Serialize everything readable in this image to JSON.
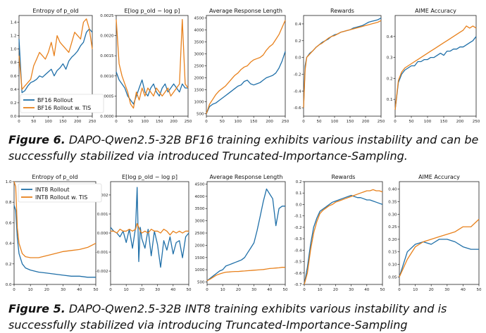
{
  "colors": {
    "blue": "#1f6fa8",
    "orange": "#e8811c"
  },
  "figures": [
    {
      "caption": {
        "label": "Figure 6.",
        "text": " DAPO-Qwen2.5-32B BF16 training exhibits various instability and can be successfully stabilized via introduced Truncated-Importance-Sampling."
      },
      "legend": {
        "placement": "lower-left of first panel",
        "entries": [
          "BF16 Rollout",
          "BF16 Rollout w. TIS"
        ]
      }
    },
    {
      "caption": {
        "label": "Figure 5.",
        "text": " DAPO-Qwen2.5-32B INT8 training exhibits various instability and is successfully stabilized via introducing Truncated-Importance-Sampling"
      },
      "legend": {
        "placement": "upper-right of first panel",
        "entries": [
          "INT8 Rollout",
          "INT8 Rollout w. TIS"
        ]
      }
    }
  ],
  "chart_data": [
    {
      "type": "line",
      "title": "Entropy of p_old^fsdp",
      "grid": false,
      "xlim": [
        0,
        250
      ],
      "ylim": [
        0,
        1.5
      ],
      "xticks": [
        "0",
        "50",
        "100",
        "150",
        "200",
        "250"
      ],
      "yticks": [
        "0.0",
        "0.2",
        "0.4",
        "0.6",
        "0.8",
        "1.0",
        "1.2",
        "1.4"
      ],
      "x": [
        0,
        10,
        20,
        30,
        40,
        50,
        60,
        70,
        80,
        90,
        100,
        110,
        120,
        130,
        140,
        150,
        160,
        170,
        180,
        190,
        200,
        210,
        220,
        230,
        240,
        250
      ],
      "series": [
        {
          "name": "BF16 Rollout",
          "color": "#1f6fa8",
          "values": [
            1.15,
            0.35,
            0.38,
            0.45,
            0.5,
            0.52,
            0.55,
            0.6,
            0.58,
            0.62,
            0.66,
            0.7,
            0.6,
            0.68,
            0.72,
            0.78,
            0.7,
            0.82,
            0.88,
            0.92,
            0.97,
            1.05,
            1.1,
            1.25,
            1.3,
            1.25
          ]
        },
        {
          "name": "BF16 Rollout w. TIS",
          "color": "#e8811c",
          "values": [
            0.9,
            0.4,
            0.45,
            0.5,
            0.55,
            0.75,
            0.85,
            0.95,
            0.9,
            0.85,
            0.95,
            1.1,
            0.9,
            1.2,
            1.1,
            1.05,
            1.0,
            0.95,
            1.1,
            1.25,
            1.2,
            1.15,
            1.4,
            1.45,
            1.3,
            1.0
          ]
        }
      ]
    },
    {
      "type": "line",
      "title": "E_{p_old^fsdp}[log p_old^fsdp − log p^fsdp]",
      "grid": false,
      "xlim": [
        0,
        250
      ],
      "ylim": [
        0,
        0.0025
      ],
      "xticks": [
        "0",
        "50",
        "100",
        "150",
        "200",
        "250"
      ],
      "yticks": [
        "0.0000",
        "0.0005",
        "0.0010",
        "0.0015",
        "0.0020",
        "0.0025"
      ],
      "x": [
        0,
        10,
        20,
        30,
        40,
        50,
        60,
        70,
        80,
        90,
        100,
        110,
        120,
        130,
        140,
        150,
        160,
        170,
        180,
        190,
        200,
        210,
        220,
        230,
        240,
        250
      ],
      "series": [
        {
          "name": "BF16 Rollout",
          "color": "#1f6fa8",
          "values": [
            0.0011,
            0.0009,
            0.0008,
            0.0007,
            0.0005,
            0.0004,
            0.0003,
            0.0005,
            0.0007,
            0.0009,
            0.0006,
            0.0005,
            0.0007,
            0.0008,
            0.0006,
            0.0005,
            0.0007,
            0.0008,
            0.0006,
            0.0007,
            0.0008,
            0.0007,
            0.0006,
            0.0008,
            0.0007,
            0.0007
          ]
        },
        {
          "name": "BF16 Rollout w. TIS",
          "color": "#e8811c",
          "values": [
            0.0024,
            0.0013,
            0.001,
            0.0008,
            0.0006,
            0.0003,
            0.0002,
            0.0006,
            0.0004,
            0.0007,
            0.0005,
            0.0007,
            0.0006,
            0.0005,
            0.0007,
            0.0006,
            0.0005,
            0.0006,
            0.0007,
            0.0005,
            0.0006,
            0.0007,
            0.0008,
            0.0024,
            0.0008,
            0.0007
          ]
        }
      ]
    },
    {
      "type": "line",
      "title": "Average Response Length",
      "grid": false,
      "xlim": [
        0,
        250
      ],
      "ylim": [
        400,
        4600
      ],
      "xticks": [
        "0",
        "50",
        "100",
        "150",
        "200",
        "250"
      ],
      "yticks": [
        "500",
        "1000",
        "1500",
        "2000",
        "2500",
        "3000",
        "3500",
        "4000",
        "4500"
      ],
      "x": [
        0,
        10,
        20,
        30,
        40,
        50,
        60,
        70,
        80,
        90,
        100,
        110,
        120,
        130,
        140,
        150,
        160,
        170,
        180,
        190,
        200,
        210,
        220,
        230,
        240,
        250
      ],
      "series": [
        {
          "name": "BF16 Rollout",
          "color": "#1f6fa8",
          "values": [
            500,
            800,
            900,
            950,
            1050,
            1150,
            1250,
            1350,
            1450,
            1550,
            1650,
            1700,
            1850,
            1900,
            1750,
            1700,
            1750,
            1800,
            1900,
            2000,
            2050,
            2100,
            2200,
            2400,
            2700,
            3100
          ]
        },
        {
          "name": "BF16 Rollout w. TIS",
          "color": "#e8811c",
          "values": [
            500,
            900,
            1100,
            1300,
            1450,
            1550,
            1650,
            1800,
            1950,
            2100,
            2200,
            2350,
            2450,
            2500,
            2650,
            2750,
            2800,
            2850,
            2950,
            3150,
            3300,
            3400,
            3600,
            3800,
            4100,
            4400
          ]
        }
      ]
    },
    {
      "type": "line",
      "title": "Rewards",
      "grid": false,
      "xlim": [
        0,
        250
      ],
      "ylim": [
        -0.7,
        0.5
      ],
      "xticks": [
        "0",
        "50",
        "100",
        "150",
        "200",
        "250"
      ],
      "yticks": [
        "-0.6",
        "-0.4",
        "-0.2",
        "0.0",
        "0.2",
        "0.4"
      ],
      "x": [
        0,
        5,
        10,
        20,
        30,
        40,
        50,
        60,
        70,
        80,
        90,
        100,
        110,
        120,
        130,
        140,
        150,
        160,
        170,
        180,
        190,
        200,
        210,
        220,
        230,
        240,
        250
      ],
      "series": [
        {
          "name": "BF16 Rollout",
          "color": "#1f6fa8",
          "values": [
            -0.6,
            -0.1,
            0.0,
            0.05,
            0.08,
            0.12,
            0.15,
            0.18,
            0.2,
            0.22,
            0.25,
            0.27,
            0.28,
            0.3,
            0.31,
            0.32,
            0.33,
            0.35,
            0.36,
            0.37,
            0.38,
            0.4,
            0.42,
            0.43,
            0.44,
            0.45,
            0.47
          ]
        },
        {
          "name": "BF16 Rollout w. TIS",
          "color": "#e8811c",
          "values": [
            -0.6,
            -0.15,
            0.0,
            0.04,
            0.08,
            0.12,
            0.15,
            0.17,
            0.2,
            0.23,
            0.25,
            0.26,
            0.28,
            0.3,
            0.31,
            0.32,
            0.33,
            0.34,
            0.35,
            0.36,
            0.37,
            0.38,
            0.39,
            0.4,
            0.41,
            0.42,
            0.44
          ]
        }
      ]
    },
    {
      "type": "line",
      "title": "AIME Accuracy",
      "grid": false,
      "xlim": [
        0,
        250
      ],
      "ylim": [
        0.02,
        0.5
      ],
      "xticks": [
        "0",
        "50",
        "100",
        "150",
        "200",
        "250"
      ],
      "yticks": [
        "0.1",
        "0.2",
        "0.3",
        "0.4"
      ],
      "x": [
        0,
        10,
        20,
        30,
        40,
        50,
        60,
        70,
        80,
        90,
        100,
        110,
        120,
        130,
        140,
        150,
        160,
        170,
        180,
        190,
        200,
        210,
        220,
        230,
        240,
        250
      ],
      "series": [
        {
          "name": "BF16 Rollout",
          "color": "#1f6fa8",
          "values": [
            0.05,
            0.18,
            0.22,
            0.24,
            0.25,
            0.26,
            0.26,
            0.28,
            0.28,
            0.29,
            0.29,
            0.3,
            0.3,
            0.31,
            0.32,
            0.31,
            0.33,
            0.33,
            0.34,
            0.34,
            0.35,
            0.35,
            0.36,
            0.37,
            0.38,
            0.4
          ]
        },
        {
          "name": "BF16 Rollout w. TIS",
          "color": "#e8811c",
          "values": [
            0.05,
            0.19,
            0.23,
            0.25,
            0.26,
            0.27,
            0.28,
            0.29,
            0.3,
            0.31,
            0.32,
            0.33,
            0.34,
            0.35,
            0.36,
            0.37,
            0.38,
            0.39,
            0.4,
            0.41,
            0.42,
            0.43,
            0.45,
            0.44,
            0.45,
            0.44
          ]
        }
      ]
    },
    {
      "type": "line",
      "title": "Entropy of p_old^fsdp",
      "grid": false,
      "xlim": [
        0,
        50
      ],
      "ylim": [
        0,
        1.0
      ],
      "xticks": [
        "0",
        "10",
        "20",
        "30",
        "40",
        "50"
      ],
      "yticks": [
        "0.0",
        "0.2",
        "0.4",
        "0.6",
        "0.8",
        "1.0"
      ],
      "x": [
        0,
        1,
        2,
        3,
        5,
        7,
        10,
        15,
        20,
        25,
        30,
        35,
        40,
        45,
        50
      ],
      "series": [
        {
          "name": "INT8 Rollout",
          "color": "#1f6fa8",
          "values": [
            0.77,
            0.72,
            0.45,
            0.3,
            0.2,
            0.16,
            0.14,
            0.12,
            0.11,
            0.1,
            0.09,
            0.08,
            0.08,
            0.07,
            0.07
          ]
        },
        {
          "name": "INT8 Rollout w. TIS",
          "color": "#e8811c",
          "values": [
            1.0,
            0.95,
            0.55,
            0.4,
            0.3,
            0.27,
            0.26,
            0.26,
            0.28,
            0.3,
            0.32,
            0.33,
            0.34,
            0.36,
            0.4
          ]
        }
      ]
    },
    {
      "type": "line",
      "title": "E_{p_old^fsdp}[log p_old^fsdp − log p^fsdp]",
      "grid": false,
      "xlim": [
        0,
        50
      ],
      "ylim": [
        -0.0027,
        0.0027
      ],
      "xticks": [
        "0",
        "10",
        "20",
        "30",
        "40",
        "50"
      ],
      "yticks": [
        "-0.002",
        "-0.001",
        "0.000",
        "0.001",
        "0.002"
      ],
      "x": [
        0,
        2,
        4,
        6,
        8,
        10,
        12,
        14,
        16,
        17,
        18,
        19,
        20,
        22,
        24,
        26,
        28,
        30,
        32,
        34,
        36,
        38,
        40,
        42,
        44,
        46,
        48,
        50
      ],
      "series": [
        {
          "name": "INT8 Rollout",
          "color": "#1f6fa8",
          "values": [
            0.0003,
            0.0001,
            0.0,
            -0.0002,
            0.0001,
            -0.0005,
            0.0002,
            -0.0008,
            0.0003,
            0.0024,
            -0.0015,
            0.0003,
            -0.0003,
            -0.0008,
            0.0002,
            -0.0012,
            0.0001,
            -0.0006,
            -0.0018,
            -0.0004,
            -0.0009,
            -0.0002,
            -0.0011,
            -0.0005,
            -0.0004,
            -0.0013,
            -0.0002,
            0.0
          ]
        },
        {
          "name": "INT8 Rollout w. TIS",
          "color": "#e8811c",
          "values": [
            0.0001,
            0.0001,
            0.0,
            0.0002,
            0.0001,
            0.0001,
            0.0002,
            0.0001,
            0.0002,
            0.0005,
            0.0003,
            0.0001,
            0.0,
            0.0001,
            0.0,
            0.0002,
            0.0001,
            0.0001,
            0.0,
            0.0002,
            0.0001,
            -0.0001,
            0.0001,
            0.0,
            0.0001,
            0.0,
            0.0001,
            0.0001
          ]
        }
      ]
    },
    {
      "type": "line",
      "title": "Average Response Length",
      "grid": false,
      "xlim": [
        0,
        50
      ],
      "ylim": [
        400,
        4600
      ],
      "xticks": [
        "0",
        "10",
        "20",
        "30",
        "40",
        "50"
      ],
      "yticks": [
        "500",
        "1000",
        "1500",
        "2000",
        "2500",
        "3000",
        "3500",
        "4000",
        "4500"
      ],
      "x": [
        0,
        2,
        4,
        6,
        8,
        10,
        12,
        14,
        16,
        18,
        20,
        22,
        24,
        26,
        28,
        30,
        32,
        34,
        36,
        38,
        40,
        42,
        44,
        46,
        48,
        50
      ],
      "series": [
        {
          "name": "INT8 Rollout",
          "color": "#1f6fa8",
          "values": [
            550,
            650,
            750,
            850,
            950,
            1000,
            1150,
            1200,
            1250,
            1300,
            1350,
            1400,
            1500,
            1700,
            1900,
            2100,
            2600,
            3200,
            3800,
            4300,
            4100,
            3900,
            2800,
            3500,
            3600,
            3600
          ]
        },
        {
          "name": "INT8 Rollout w. TIS",
          "color": "#e8811c",
          "values": [
            550,
            620,
            700,
            780,
            830,
            870,
            900,
            910,
            920,
            930,
            930,
            940,
            950,
            960,
            970,
            980,
            990,
            1000,
            1010,
            1030,
            1050,
            1060,
            1070,
            1080,
            1100,
            1100
          ]
        }
      ]
    },
    {
      "type": "line",
      "title": "Rewards",
      "grid": false,
      "xlim": [
        0,
        50
      ],
      "ylim": [
        -0.7,
        0.2
      ],
      "xticks": [
        "0",
        "10",
        "20",
        "30",
        "40",
        "50"
      ],
      "yticks": [
        "-0.7",
        "-0.6",
        "-0.5",
        "-0.4",
        "-0.3",
        "-0.2",
        "-0.1",
        "0.0",
        "0.1",
        "0.2"
      ],
      "x": [
        0,
        2,
        4,
        6,
        8,
        10,
        12,
        14,
        16,
        18,
        20,
        22,
        24,
        26,
        28,
        30,
        32,
        34,
        36,
        38,
        40,
        42,
        44,
        46,
        48,
        50
      ],
      "series": [
        {
          "name": "INT8 Rollout",
          "color": "#1f6fa8",
          "values": [
            -0.7,
            -0.55,
            -0.35,
            -0.2,
            -0.12,
            -0.06,
            -0.04,
            -0.02,
            0.0,
            0.02,
            0.03,
            0.04,
            0.05,
            0.06,
            0.07,
            0.08,
            0.07,
            0.06,
            0.06,
            0.05,
            0.04,
            0.04,
            0.03,
            0.02,
            0.01,
            0.0
          ]
        },
        {
          "name": "INT8 Rollout w. TIS",
          "color": "#e8811c",
          "values": [
            -0.7,
            -0.6,
            -0.4,
            -0.25,
            -0.15,
            -0.08,
            -0.05,
            -0.03,
            -0.01,
            0.0,
            0.02,
            0.03,
            0.04,
            0.05,
            0.06,
            0.07,
            0.08,
            0.09,
            0.1,
            0.11,
            0.12,
            0.12,
            0.13,
            0.12,
            0.12,
            0.11
          ]
        }
      ]
    },
    {
      "type": "line",
      "title": "AIME Accuracy",
      "grid": false,
      "xlim": [
        0,
        50
      ],
      "ylim": [
        0.02,
        0.43
      ],
      "xticks": [
        "0",
        "10",
        "20",
        "30",
        "40",
        "50"
      ],
      "yticks": [
        "0.05",
        "0.10",
        "0.15",
        "0.20",
        "0.25",
        "0.30",
        "0.35",
        "0.40"
      ],
      "x": [
        0,
        5,
        10,
        15,
        20,
        25,
        30,
        35,
        40,
        45,
        50
      ],
      "series": [
        {
          "name": "INT8 Rollout",
          "color": "#1f6fa8",
          "values": [
            0.05,
            0.15,
            0.18,
            0.19,
            0.18,
            0.2,
            0.2,
            0.19,
            0.17,
            0.16,
            0.16
          ]
        },
        {
          "name": "INT8 Rollout w. TIS",
          "color": "#e8811c",
          "values": [
            0.05,
            0.12,
            0.17,
            0.19,
            0.2,
            0.21,
            0.22,
            0.23,
            0.25,
            0.25,
            0.28
          ]
        }
      ]
    }
  ]
}
